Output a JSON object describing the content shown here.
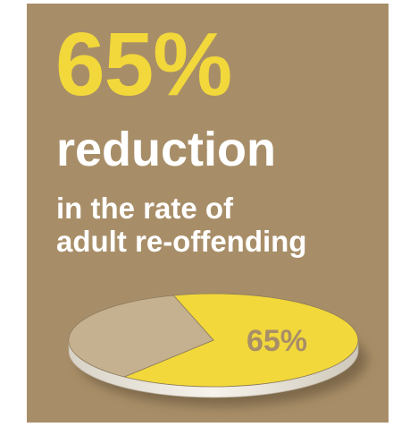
{
  "infographic": {
    "headline": "65%",
    "subhead": "reduction",
    "description_lines": [
      "in the rate of",
      "adult re-offending"
    ]
  },
  "colors": {
    "background": "#a88e68",
    "accent_yellow": "#f2d83a",
    "remainder_slice": "#c5b08f",
    "label_color": "#a88e68",
    "text_white": "#ffffff"
  },
  "chart_data": {
    "type": "pie",
    "title": "",
    "slices": [
      {
        "label": "65%",
        "value": 65
      },
      {
        "label": "",
        "value": 35
      }
    ]
  }
}
